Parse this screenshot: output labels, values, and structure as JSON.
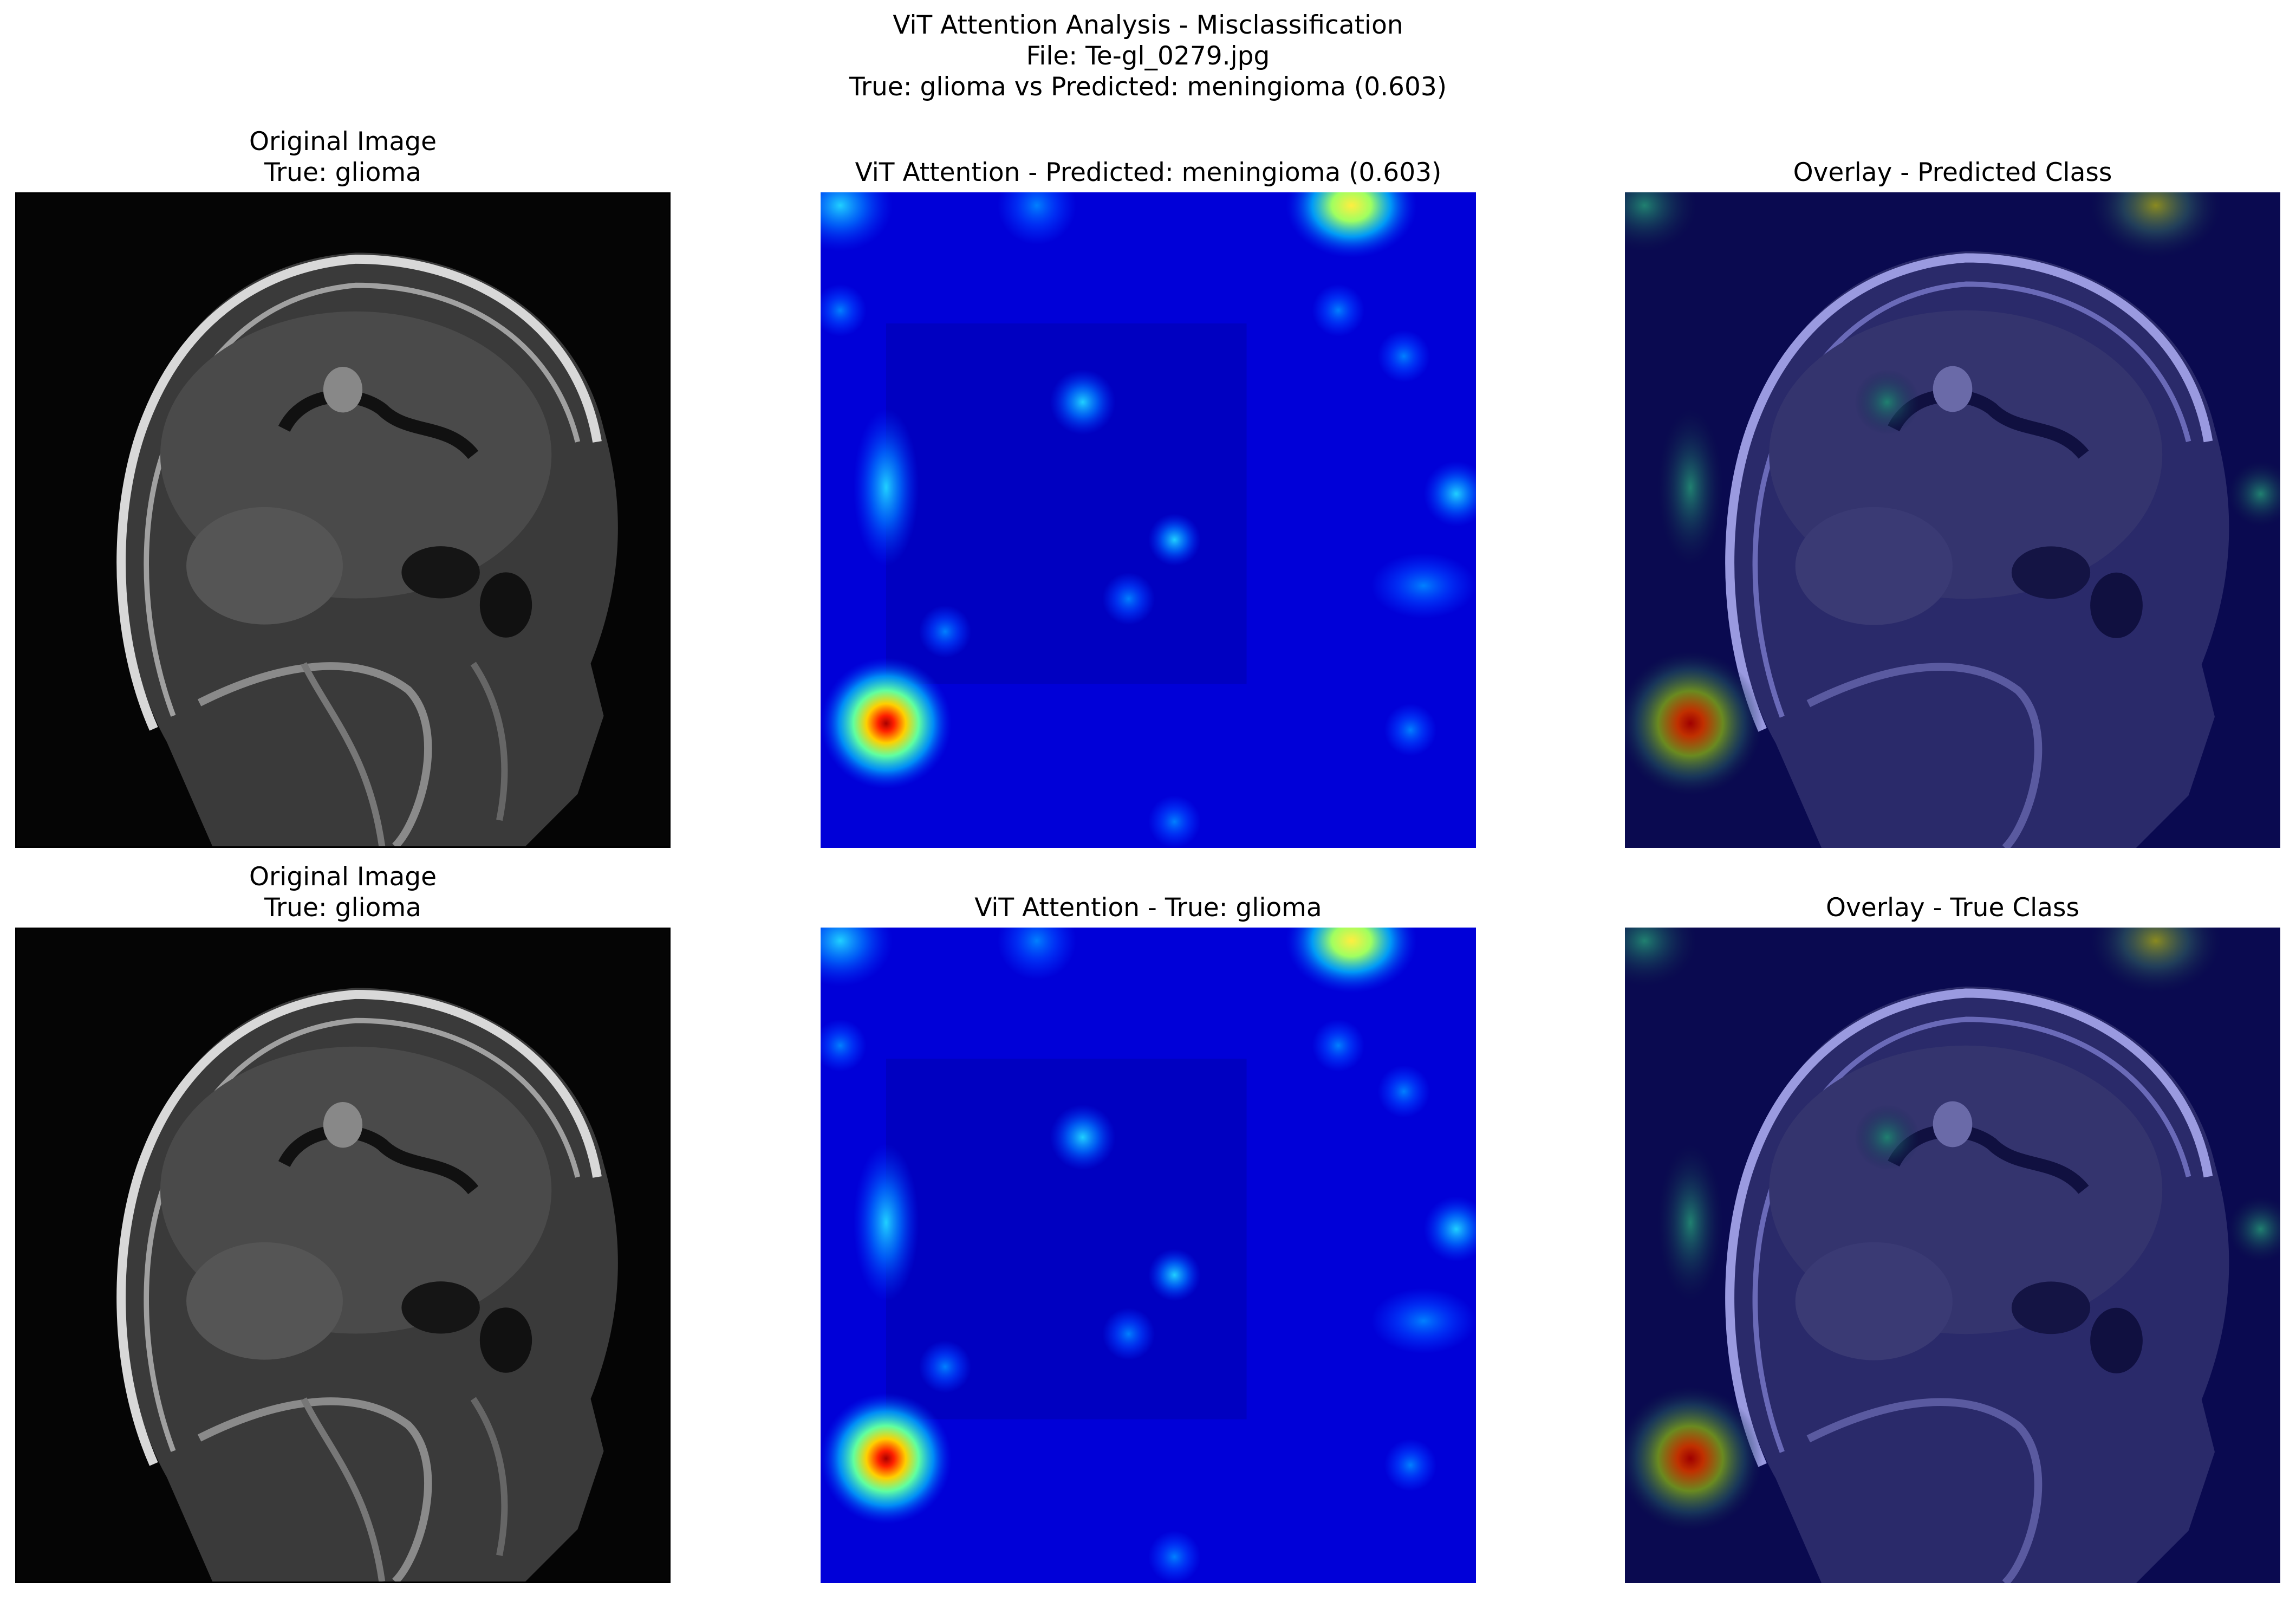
{
  "figure": {
    "title_line1": "ViT Attention Analysis - Misclassification",
    "title_line2": "File: Te-gl_0279.jpg",
    "title_line3": "True: glioma vs Predicted: meningioma (0.603)"
  },
  "rows": [
    {
      "original": {
        "title_line1": "Original Image",
        "title_line2": "True: glioma"
      },
      "attention": {
        "title": "ViT Attention - Predicted: meningioma (0.603)"
      },
      "overlay": {
        "title": "Overlay - Predicted Class"
      }
    },
    {
      "original": {
        "title_line1": "Original Image",
        "title_line2": "True: glioma"
      },
      "attention": {
        "title": "ViT Attention - True: glioma"
      },
      "overlay": {
        "title": "Overlay - True Class"
      }
    }
  ],
  "colors": {
    "heatmap_base": "#0000cc",
    "mri_background": "#050505",
    "overlay_base": "#0a0a5a"
  }
}
